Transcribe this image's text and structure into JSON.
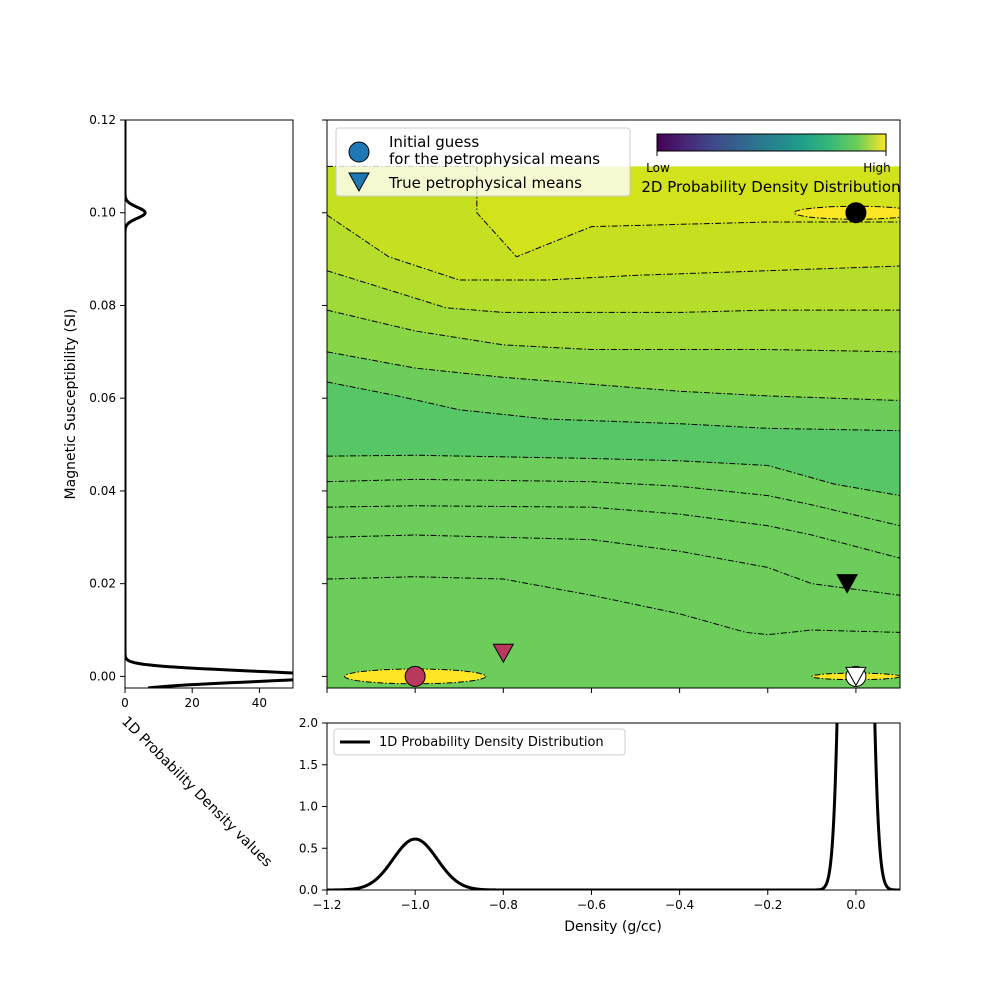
{
  "chart_data": [
    {
      "type": "contour",
      "title": "2D Probability Density Distribution",
      "xlim": [
        -1.2,
        0.1
      ],
      "ylim": [
        -0.0025,
        0.12
      ],
      "colorbar": {
        "min_label": "Low",
        "max_label": "High",
        "placement": "top-right",
        "colormap": "viridis"
      },
      "legend": {
        "placement": "top-left",
        "entries": [
          {
            "marker": "circle",
            "label_line1": "Initial guess",
            "label_line2": "for the petrophysical means",
            "color": "#1f77b4"
          },
          {
            "marker": "triangle-down",
            "label_line1": "True petrophysical means",
            "color": "#1f77b4"
          }
        ]
      },
      "initial_guess": [
        {
          "x": -1.0,
          "y": 0.0,
          "color": "#b8385e"
        },
        {
          "x": 0.0,
          "y": 0.1,
          "color": "#000000"
        },
        {
          "x": 0.0,
          "y": 0.0,
          "color": "#ffffff"
        }
      ],
      "true_means": [
        {
          "x": -0.8,
          "y": 0.005,
          "color": "#b8385e"
        },
        {
          "x": -0.02,
          "y": 0.02,
          "color": "#000000"
        },
        {
          "x": 0.0,
          "y": 0.0,
          "color": "#ffffff"
        }
      ],
      "contour_levels": [
        {
          "color": "#d2e21b",
          "points": [
            [
              -1.2,
              0.021
            ],
            [
              -1.0,
              0.0215
            ],
            [
              -0.8,
              0.021
            ],
            [
              -0.6,
              0.0175
            ],
            [
              -0.4,
              0.0135
            ],
            [
              -0.25,
              0.0095
            ],
            [
              -0.2,
              0.009
            ],
            [
              -0.1,
              0.01
            ],
            [
              0.1,
              0.0095
            ]
          ]
        },
        {
          "color": "#b5de2b",
          "points": [
            [
              -1.2,
              0.03
            ],
            [
              -1.0,
              0.0305
            ],
            [
              -0.6,
              0.0295
            ],
            [
              -0.4,
              0.027
            ],
            [
              -0.2,
              0.0235
            ],
            [
              -0.1,
              0.02
            ],
            [
              0.1,
              0.0175
            ]
          ]
        },
        {
          "color": "#a0da39",
          "points": [
            [
              -1.2,
              0.0365
            ],
            [
              -1.0,
              0.0368
            ],
            [
              -0.6,
              0.0365
            ],
            [
              -0.4,
              0.035
            ],
            [
              -0.2,
              0.0325
            ],
            [
              -0.1,
              0.0305
            ],
            [
              0.1,
              0.0255
            ]
          ]
        },
        {
          "color": "#89d548",
          "points": [
            [
              -1.2,
              0.042
            ],
            [
              -1.0,
              0.0425
            ],
            [
              -0.6,
              0.042
            ],
            [
              -0.4,
              0.041
            ],
            [
              -0.2,
              0.039
            ],
            [
              -0.1,
              0.037
            ],
            [
              0.1,
              0.0325
            ]
          ]
        },
        {
          "color": "#6ccd5a",
          "points": [
            [
              -1.2,
              0.0475
            ],
            [
              -1.0,
              0.0477
            ],
            [
              -0.6,
              0.047
            ],
            [
              -0.4,
              0.0465
            ],
            [
              -0.2,
              0.0455
            ],
            [
              -0.05,
              0.0415
            ],
            [
              0.1,
              0.039
            ]
          ]
        },
        {
          "color": "#56c667",
          "points": [
            [
              -1.2,
              0.0635
            ],
            [
              -1.04,
              0.0605
            ],
            [
              -0.9,
              0.0575
            ],
            [
              -0.7,
              0.0555
            ],
            [
              -0.4,
              0.0545
            ],
            [
              -0.2,
              0.0535
            ],
            [
              0.1,
              0.053
            ]
          ]
        },
        {
          "color": "#6ccd5a",
          "points": [
            [
              -1.2,
              0.07
            ],
            [
              -1.0,
              0.0665
            ],
            [
              -0.8,
              0.0645
            ],
            [
              -0.6,
              0.063
            ],
            [
              -0.4,
              0.0615
            ],
            [
              -0.2,
              0.0605
            ],
            [
              0.1,
              0.0595
            ]
          ]
        },
        {
          "color": "#89d548",
          "points": [
            [
              -1.2,
              0.079
            ],
            [
              -1.0,
              0.0745
            ],
            [
              -0.8,
              0.0715
            ],
            [
              -0.6,
              0.0705
            ],
            [
              -0.4,
              0.0705
            ],
            [
              -0.2,
              0.0705
            ],
            [
              0.1,
              0.07
            ]
          ]
        },
        {
          "color": "#a0da39",
          "points": [
            [
              -1.2,
              0.0875
            ],
            [
              -0.93,
              0.0795
            ],
            [
              -0.8,
              0.0785
            ],
            [
              -0.6,
              0.0785
            ],
            [
              -0.4,
              0.0785
            ],
            [
              -0.2,
              0.079
            ],
            [
              0.1,
              0.079
            ]
          ]
        },
        {
          "color": "#b5de2b",
          "points": [
            [
              -1.2,
              0.0995
            ],
            [
              -1.06,
              0.0905
            ],
            [
              -0.9,
              0.0855
            ],
            [
              -0.7,
              0.0855
            ],
            [
              -0.5,
              0.0865
            ],
            [
              -0.2,
              0.0875
            ],
            [
              0.1,
              0.0885
            ]
          ]
        },
        {
          "color": "#c6e021",
          "points": [
            [
              -1.2,
              0.11
            ],
            [
              -0.86,
              0.11
            ],
            [
              -0.86,
              0.1
            ],
            [
              -0.77,
              0.0905
            ],
            [
              -0.6,
              0.097
            ],
            [
              -0.4,
              0.0975
            ],
            [
              -0.2,
              0.098
            ],
            [
              0.1,
              0.098
            ]
          ]
        }
      ],
      "peak_ellipses": [
        {
          "cx": -1.0,
          "cy": 0.0,
          "rx": 0.16,
          "ry": 0.0016
        },
        {
          "cx": 0.0,
          "cy": 0.1,
          "rx": 0.14,
          "ry": 0.0014
        },
        {
          "cx": 0.0,
          "cy": 0.0,
          "rx": 0.1,
          "ry": 0.0007
        }
      ]
    },
    {
      "type": "line",
      "orientation": "vertical",
      "xlabel": "1D Probability Density values",
      "ylabel": "Magnetic Susceptibility (SI)",
      "xlim": [
        0,
        50
      ],
      "ylim": [
        -0.0025,
        0.12
      ],
      "x_ticks": [
        "0",
        "20",
        "40"
      ],
      "y_ticks": [
        "0.00",
        "0.02",
        "0.04",
        "0.06",
        "0.08",
        "0.10",
        "0.12"
      ],
      "y_tick_values": [
        0.0,
        0.02,
        0.04,
        0.06,
        0.08,
        0.1,
        0.12
      ],
      "peaks": [
        {
          "center": 0.1,
          "sigma": 0.0012,
          "amplitude": 6.0
        },
        {
          "center": 0.0,
          "sigma": 0.0012,
          "amplitude": 60.0
        }
      ]
    },
    {
      "type": "line",
      "xlabel": "Density (g/cc)",
      "xlim": [
        -1.2,
        0.1
      ],
      "ylim": [
        0,
        2.0
      ],
      "x_ticks": [
        "−1.2",
        "−1.0",
        "−0.8",
        "−0.6",
        "−0.4",
        "−0.2",
        "0.0"
      ],
      "x_tick_values": [
        -1.2,
        -1.0,
        -0.8,
        -0.6,
        -0.4,
        -0.2,
        0.0
      ],
      "y_ticks": [
        "0.0",
        "0.5",
        "1.0",
        "1.5",
        "2.0"
      ],
      "y_tick_values": [
        0.0,
        0.5,
        1.0,
        1.5,
        2.0
      ],
      "series": [
        {
          "name": "1D Probability Density Distribution"
        }
      ],
      "legend_placement": "top-left",
      "peaks": [
        {
          "center": -1.0,
          "sigma": 0.05,
          "amplitude": 0.61
        },
        {
          "center": 0.0,
          "sigma": 0.02,
          "amplitude": 20.0
        }
      ]
    }
  ]
}
